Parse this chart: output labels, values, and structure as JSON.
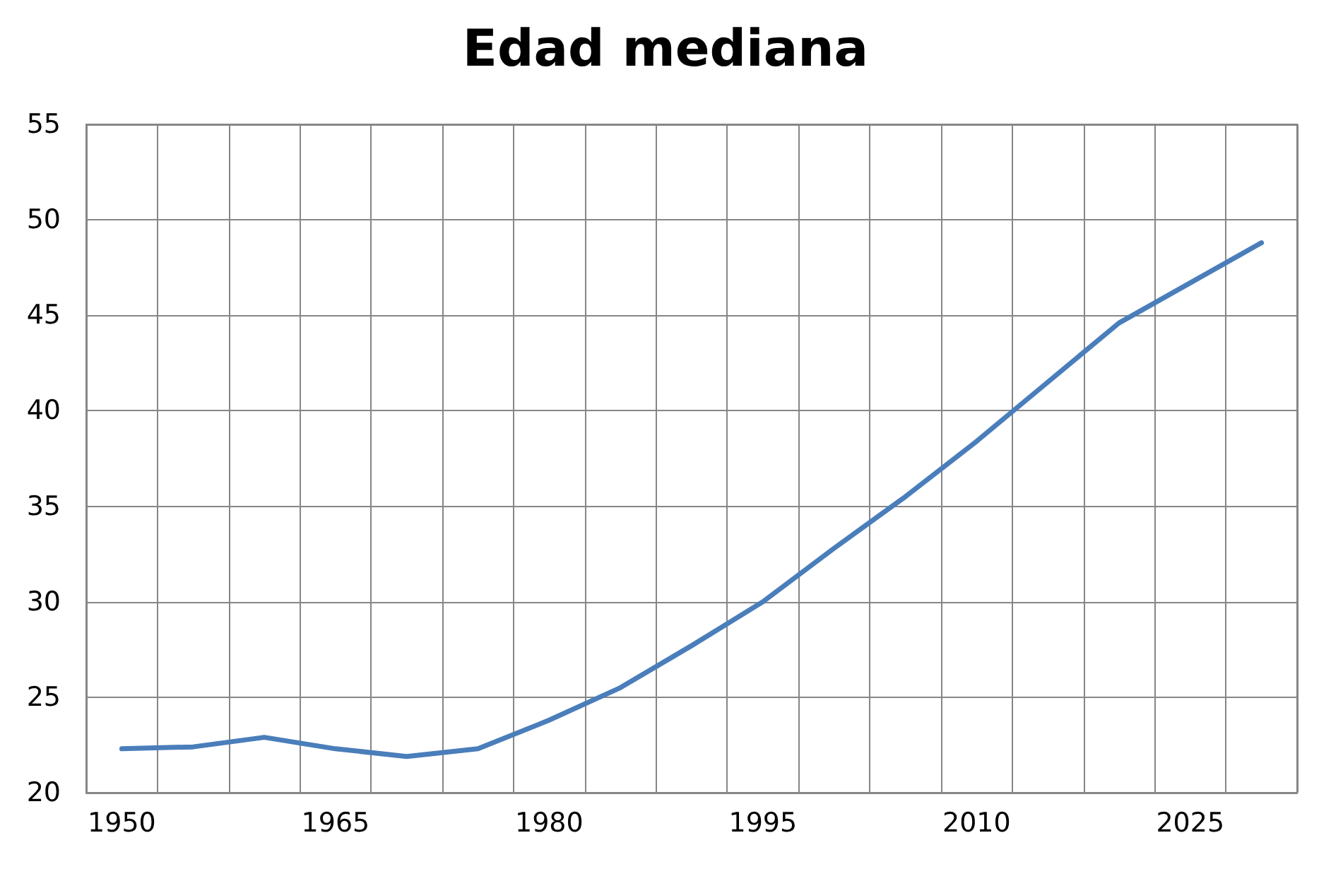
{
  "chart_data": {
    "type": "line",
    "title": "Edad mediana",
    "categories": [
      "1950",
      null,
      null,
      "1965",
      null,
      null,
      "1980",
      null,
      null,
      "1995",
      null,
      null,
      "2010",
      null,
      null,
      "2025",
      null
    ],
    "series": [
      {
        "color": "#4a7ebb",
        "values": [
          22.3,
          22.4,
          22.9,
          22.3,
          21.9,
          22.3,
          23.8,
          25.5,
          27.7,
          30.0,
          32.8,
          35.5,
          38.4,
          41.5,
          44.6,
          46.7,
          48.8
        ]
      }
    ],
    "ylim": [
      20,
      55
    ],
    "yticks": [
      20,
      25,
      30,
      35,
      40,
      45,
      50,
      55
    ],
    "grid": true,
    "marker": "none",
    "line_style": "solid"
  }
}
